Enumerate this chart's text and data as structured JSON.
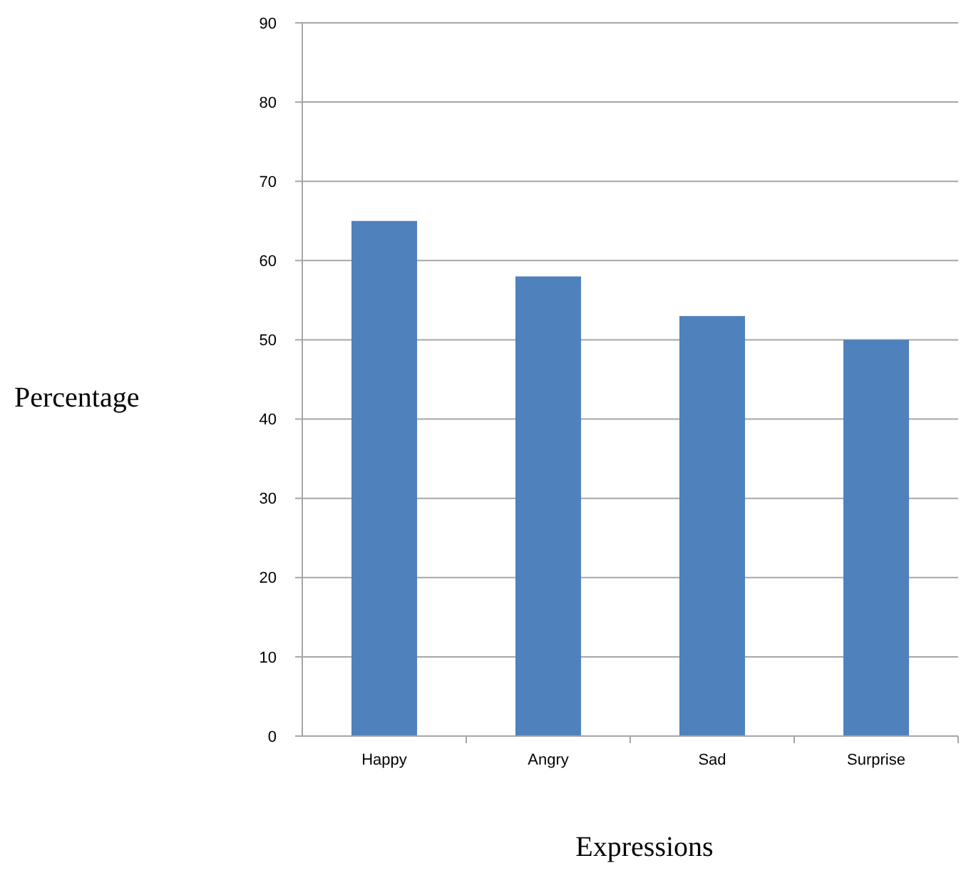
{
  "chart_data": {
    "type": "bar",
    "xlabel": "Expressions",
    "ylabel": "Percentage",
    "categories": [
      "Happy",
      "Angry",
      "Sad",
      "Surprise"
    ],
    "values": [
      65,
      58,
      53,
      50
    ],
    "color": "#4f81bd",
    "ylim": [
      0,
      90
    ],
    "yticks": [
      0,
      10,
      20,
      30,
      40,
      50,
      60,
      70,
      80,
      90
    ],
    "grid": "y"
  }
}
